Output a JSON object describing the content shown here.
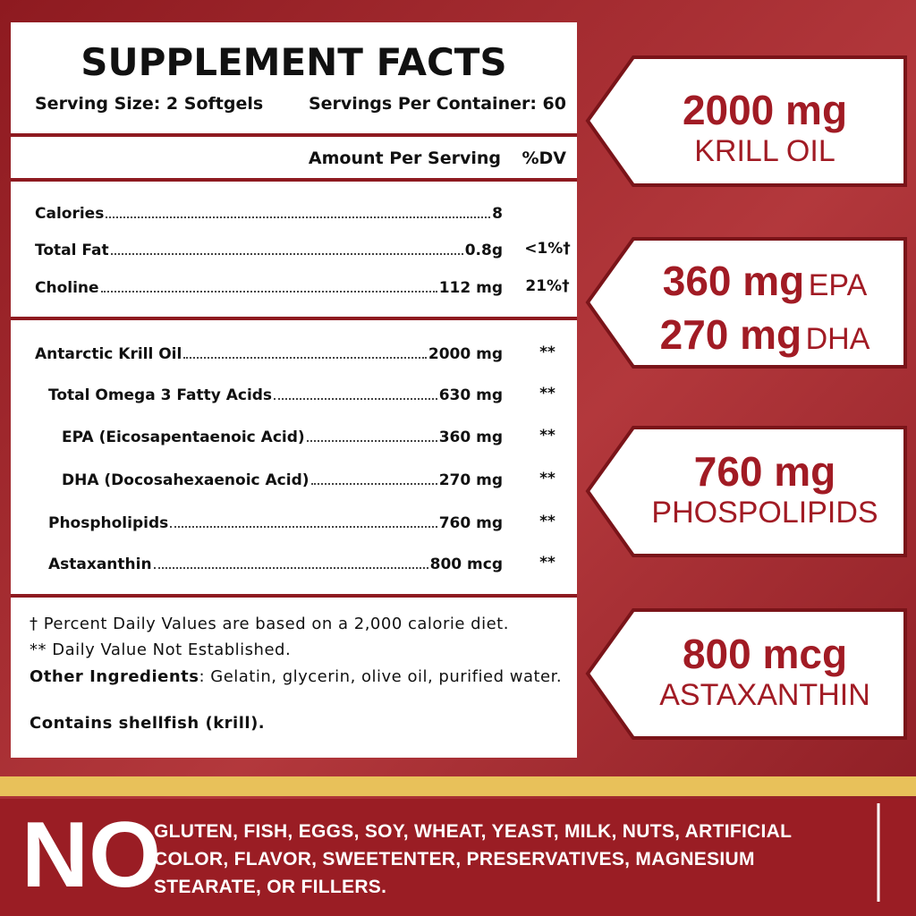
{
  "panel": {
    "title": "SUPPLEMENT FACTS",
    "serving_size": "Serving Size: 2 Softgels",
    "servings_per_container": "Servings Per Container: 60",
    "amount_header": "Amount Per Serving",
    "dv_header": "%DV",
    "nutrients": [
      {
        "name": "Calories",
        "amount": "8",
        "dv": null
      },
      {
        "name": "Total Fat",
        "amount": "0.8g",
        "dv": "<1%†"
      },
      {
        "name": "Choline",
        "amount": "112 mg",
        "dv": "21%†"
      }
    ],
    "ingredients": [
      {
        "name": "Antarctic Krill Oil",
        "amount": "2000 mg",
        "dv": "**"
      },
      {
        "name": "Total Omega 3 Fatty Acids",
        "amount": "630 mg",
        "dv": "**"
      },
      {
        "name": "EPA (Eicosapentaenoic Acid)",
        "amount": "360 mg",
        "dv": "**"
      },
      {
        "name": "DHA (Docosahexaenoic Acid)",
        "amount": "270 mg",
        "dv": "**"
      },
      {
        "name": "Phospholipids",
        "amount": "760 mg",
        "dv": "**"
      },
      {
        "name": "Astaxanthin",
        "amount": "800 mcg",
        "dv": "**"
      }
    ],
    "dagger_note": "† Percent Daily Values are based on a 2,000 calorie diet.",
    "dv_note": "** Daily Value Not Established.",
    "other_ingredients_label": "Other Ingredients",
    "other_ingredients_text": ":  Gelatin, glycerin, olive oil, purified water.",
    "contains": "Contains shellfish (krill)."
  },
  "callouts": [
    {
      "amount": "2000 mg",
      "label": "KRILL OIL"
    },
    {
      "amount": "360 mg",
      "label": "EPA",
      "amount2": "270 mg",
      "label2": "DHA"
    },
    {
      "amount": "760 mg",
      "label": "PHOSPOLIPIDS"
    },
    {
      "amount": "800 mcg",
      "label": "ASTAXANTHIN"
    }
  ],
  "banner": {
    "no": "NO",
    "text": "GLUTEN, FISH, EGGS, SOY, WHEAT, YEAST, MILK, NUTS, ARTIFICIAL COLOR, FLAVOR, SWEETENTER, PRESERVATIVES, MAGNESIUM STEARATE, OR FILLERS."
  }
}
